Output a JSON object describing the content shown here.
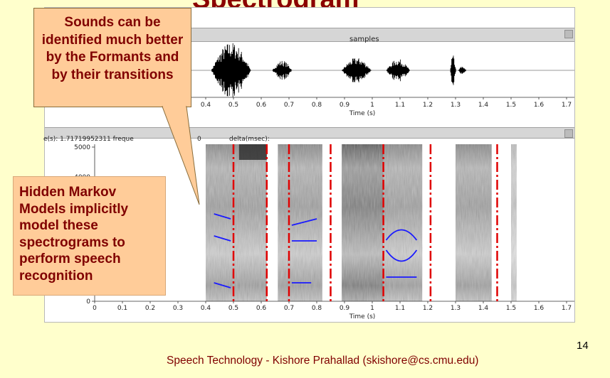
{
  "slide": {
    "title": "Spectrogram",
    "number": "14",
    "footer": "Speech Technology - Kishore Prahallad (skishore@cs.cmu.edu)"
  },
  "callouts": {
    "top": "Sounds can be identified much better by the Formants and by their transitions",
    "left": "Hidden Markov Models implicitly model these spectrograms to perform speech recognition"
  },
  "waveform_panel": {
    "header_label": "samples",
    "x_ticks": [
      "0.4",
      "0.5",
      "0.6",
      "0.7",
      "0.8",
      "0.9",
      "1",
      "1.1",
      "1.2",
      "1.3",
      "1.4",
      "1.5",
      "1.6",
      "1.7"
    ],
    "x_axis_label": "Time (s)"
  },
  "status_bar": {
    "time_readout": "e(s): 1.71719952311  freque",
    "freq_value": "0",
    "delta_label": "delta(msec):"
  },
  "spectrogram_panel": {
    "y_ticks": [
      "5000",
      "4000",
      "0"
    ],
    "x_ticks": [
      "0",
      "0.1",
      "0.2",
      "0.3",
      "0.4",
      "0.5",
      "0.6",
      "0.7",
      "0.8",
      "0.9",
      "1",
      "1.1",
      "1.2",
      "1.3",
      "1.4",
      "1.5",
      "1.6",
      "1.7"
    ],
    "x_axis_label": "Time (s)",
    "segment_boundaries_s": [
      0.5,
      0.62,
      0.7,
      0.85,
      1.04,
      1.21,
      1.45
    ],
    "formant_color": "#1a1aff",
    "boundary_color": "#e00000"
  },
  "colors": {
    "slide_background": "#ffffcc",
    "callout_fill": "#ffcc99",
    "text_dark_red": "#800000"
  }
}
